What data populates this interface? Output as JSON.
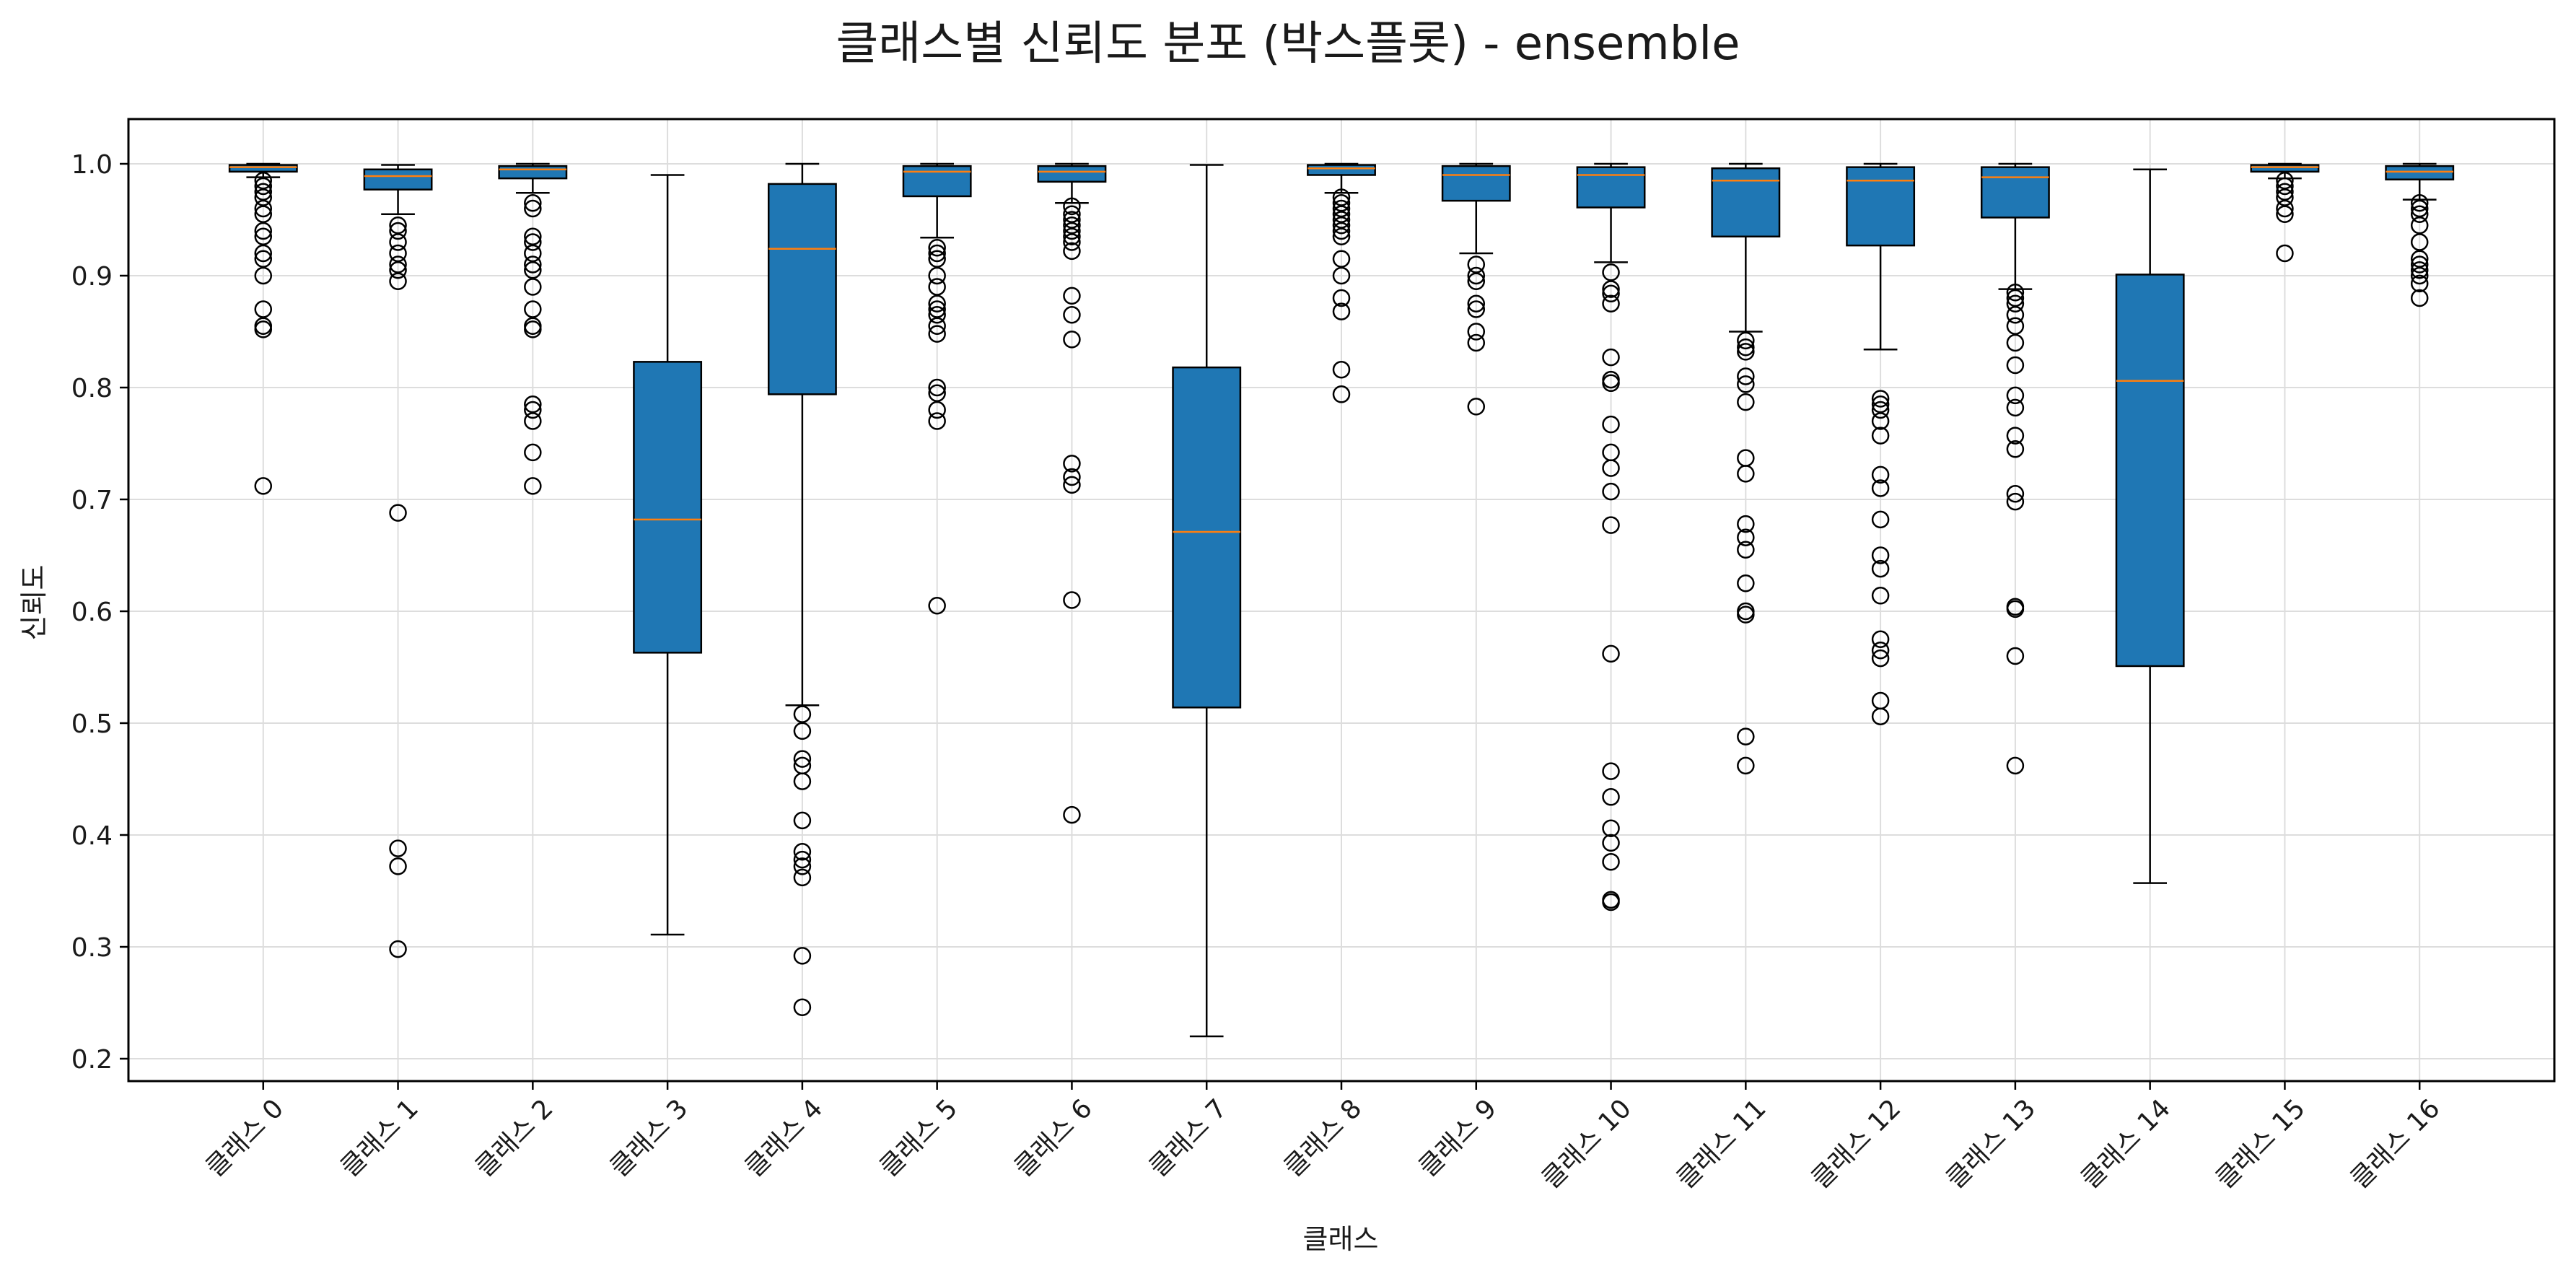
{
  "chart_data": {
    "type": "boxplot",
    "title": "클래스별 신뢰도 분포 (박스플롯) - ensemble",
    "xlabel": "클래스",
    "ylabel": "신뢰도",
    "ylim": [
      0.18,
      1.04
    ],
    "yticks": [
      0.2,
      0.3,
      0.4,
      0.5,
      0.6,
      0.7,
      0.8,
      0.9,
      1.0
    ],
    "grid": true,
    "box_color": "#1f77b4",
    "median_color": "#ff7f0e",
    "categories": [
      "클래스 0",
      "클래스 1",
      "클래스 2",
      "클래스 3",
      "클래스 4",
      "클래스 5",
      "클래스 6",
      "클래스 7",
      "클래스 8",
      "클래스 9",
      "클래스 10",
      "클래스 11",
      "클래스 12",
      "클래스 13",
      "클래스 14",
      "클래스 15",
      "클래스 16"
    ],
    "boxes": [
      {
        "whisker_low": 0.988,
        "q1": 0.993,
        "median": 0.997,
        "q3": 0.999,
        "whisker_high": 1.0,
        "outliers": [
          0.985,
          0.98,
          0.975,
          0.97,
          0.96,
          0.955,
          0.94,
          0.935,
          0.92,
          0.915,
          0.9,
          0.87,
          0.855,
          0.852,
          0.712
        ]
      },
      {
        "whisker_low": 0.955,
        "q1": 0.977,
        "median": 0.989,
        "q3": 0.995,
        "whisker_high": 0.999,
        "outliers": [
          0.945,
          0.94,
          0.93,
          0.92,
          0.91,
          0.905,
          0.895,
          0.688,
          0.388,
          0.372,
          0.298
        ]
      },
      {
        "whisker_low": 0.974,
        "q1": 0.987,
        "median": 0.995,
        "q3": 0.998,
        "whisker_high": 1.0,
        "outliers": [
          0.965,
          0.96,
          0.935,
          0.93,
          0.92,
          0.91,
          0.905,
          0.89,
          0.87,
          0.855,
          0.852,
          0.785,
          0.78,
          0.77,
          0.742,
          0.712
        ]
      },
      {
        "whisker_low": 0.311,
        "q1": 0.563,
        "median": 0.682,
        "q3": 0.823,
        "whisker_high": 0.99,
        "outliers": []
      },
      {
        "whisker_low": 0.516,
        "q1": 0.794,
        "median": 0.924,
        "q3": 0.982,
        "whisker_high": 1.0,
        "outliers": [
          0.508,
          0.493,
          0.468,
          0.462,
          0.448,
          0.413,
          0.385,
          0.378,
          0.372,
          0.362,
          0.292,
          0.246
        ]
      },
      {
        "whisker_low": 0.934,
        "q1": 0.971,
        "median": 0.993,
        "q3": 0.998,
        "whisker_high": 1.0,
        "outliers": [
          0.925,
          0.92,
          0.915,
          0.9,
          0.89,
          0.875,
          0.87,
          0.865,
          0.855,
          0.848,
          0.8,
          0.795,
          0.78,
          0.77,
          0.605
        ]
      },
      {
        "whisker_low": 0.965,
        "q1": 0.984,
        "median": 0.993,
        "q3": 0.998,
        "whisker_high": 1.0,
        "outliers": [
          0.962,
          0.955,
          0.95,
          0.945,
          0.94,
          0.935,
          0.93,
          0.922,
          0.882,
          0.865,
          0.843,
          0.732,
          0.72,
          0.713,
          0.61,
          0.418
        ]
      },
      {
        "whisker_low": 0.22,
        "q1": 0.514,
        "median": 0.671,
        "q3": 0.818,
        "whisker_high": 0.999,
        "outliers": []
      },
      {
        "whisker_low": 0.974,
        "q1": 0.99,
        "median": 0.996,
        "q3": 0.999,
        "whisker_high": 1.0,
        "outliers": [
          0.97,
          0.965,
          0.96,
          0.955,
          0.95,
          0.945,
          0.94,
          0.935,
          0.915,
          0.9,
          0.88,
          0.868,
          0.816,
          0.794
        ]
      },
      {
        "whisker_low": 0.92,
        "q1": 0.967,
        "median": 0.99,
        "q3": 0.998,
        "whisker_high": 1.0,
        "outliers": [
          0.91,
          0.9,
          0.895,
          0.875,
          0.87,
          0.85,
          0.84,
          0.783
        ]
      },
      {
        "whisker_low": 0.912,
        "q1": 0.961,
        "median": 0.99,
        "q3": 0.997,
        "whisker_high": 1.0,
        "outliers": [
          0.903,
          0.888,
          0.884,
          0.875,
          0.827,
          0.807,
          0.804,
          0.767,
          0.742,
          0.728,
          0.707,
          0.677,
          0.562,
          0.457,
          0.434,
          0.406,
          0.393,
          0.376,
          0.342,
          0.34
        ]
      },
      {
        "whisker_low": 0.85,
        "q1": 0.935,
        "median": 0.985,
        "q3": 0.996,
        "whisker_high": 1.0,
        "outliers": [
          0.842,
          0.836,
          0.832,
          0.81,
          0.803,
          0.787,
          0.737,
          0.723,
          0.678,
          0.666,
          0.655,
          0.625,
          0.6,
          0.597,
          0.488,
          0.462
        ]
      },
      {
        "whisker_low": 0.834,
        "q1": 0.927,
        "median": 0.985,
        "q3": 0.997,
        "whisker_high": 1.0,
        "outliers": [
          0.79,
          0.785,
          0.78,
          0.77,
          0.757,
          0.722,
          0.71,
          0.682,
          0.65,
          0.638,
          0.614,
          0.575,
          0.565,
          0.558,
          0.52,
          0.506
        ]
      },
      {
        "whisker_low": 0.888,
        "q1": 0.952,
        "median": 0.988,
        "q3": 0.997,
        "whisker_high": 1.0,
        "outliers": [
          0.885,
          0.88,
          0.875,
          0.865,
          0.855,
          0.84,
          0.82,
          0.793,
          0.782,
          0.757,
          0.745,
          0.705,
          0.698,
          0.604,
          0.602,
          0.56,
          0.462
        ]
      },
      {
        "whisker_low": 0.357,
        "q1": 0.551,
        "median": 0.806,
        "q3": 0.901,
        "whisker_high": 0.995,
        "outliers": []
      },
      {
        "whisker_low": 0.987,
        "q1": 0.993,
        "median": 0.997,
        "q3": 0.999,
        "whisker_high": 1.0,
        "outliers": [
          0.985,
          0.98,
          0.975,
          0.97,
          0.96,
          0.955,
          0.92
        ]
      },
      {
        "whisker_low": 0.968,
        "q1": 0.986,
        "median": 0.993,
        "q3": 0.998,
        "whisker_high": 1.0,
        "outliers": [
          0.965,
          0.96,
          0.955,
          0.945,
          0.93,
          0.915,
          0.91,
          0.905,
          0.9,
          0.893,
          0.88
        ]
      }
    ]
  }
}
